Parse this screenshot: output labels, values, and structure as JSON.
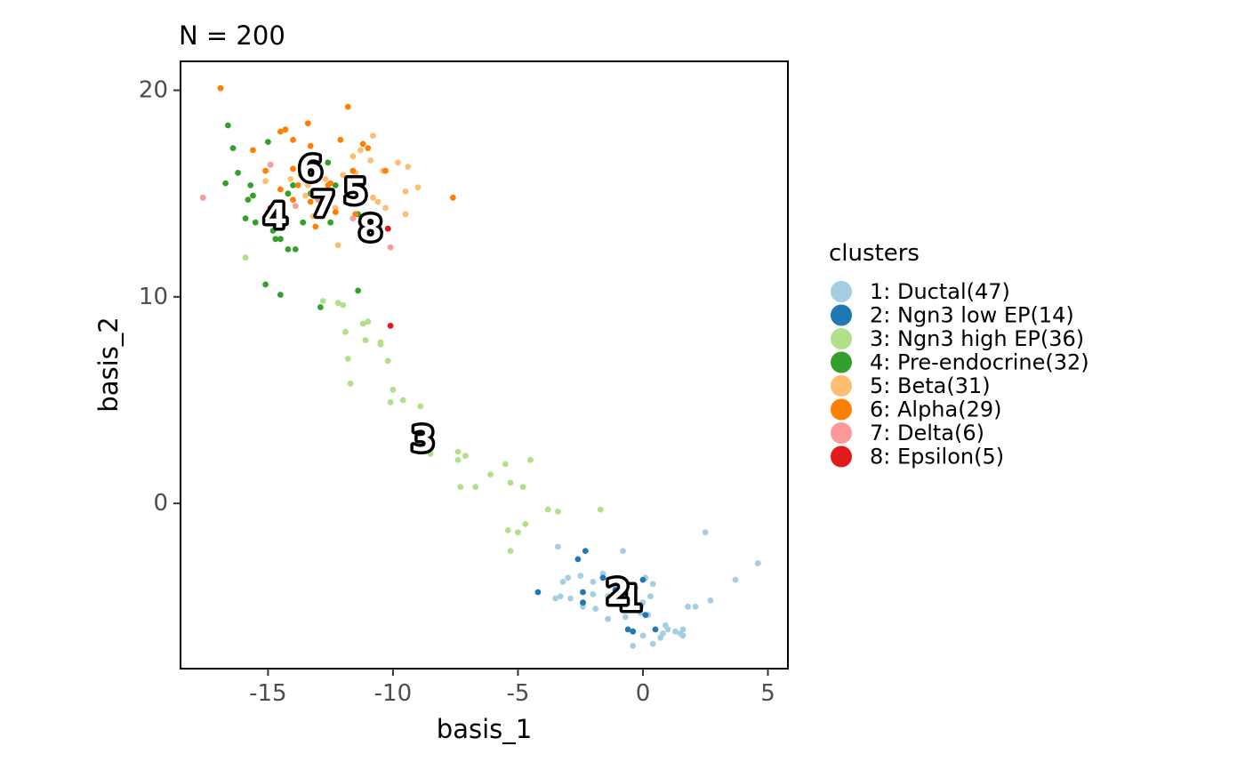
{
  "chart_data": {
    "type": "scatter",
    "title": "N = 200",
    "xlabel": "basis_1",
    "ylabel": "basis_2",
    "xlim": [
      -18.5,
      5.8
    ],
    "ylim": [
      -8.0,
      21.4
    ],
    "xticks": [
      -15,
      -10,
      -5,
      0,
      5
    ],
    "yticks": [
      0,
      10,
      20
    ],
    "xtick_labels": [
      "-15",
      "-10",
      "-5",
      "0",
      "5"
    ],
    "ytick_labels": [
      "0",
      "10",
      "20"
    ],
    "grid": false,
    "legend": {
      "title": "clusters",
      "position": "right",
      "entries": [
        {
          "label": "1: Ductal(47)",
          "color": "#A6CEE3"
        },
        {
          "label": "2: Ngn3 low EP(14)",
          "color": "#1F78B4"
        },
        {
          "label": "3: Ngn3 high EP(36)",
          "color": "#B2DF8A"
        },
        {
          "label": "4: Pre-endocrine(32)",
          "color": "#33A02C"
        },
        {
          "label": "5: Beta(31)",
          "color": "#FDBF6F"
        },
        {
          "label": "6: Alpha(29)",
          "color": "#FF7F00"
        },
        {
          "label": "7: Delta(6)",
          "color": "#FB9A99"
        },
        {
          "label": "8: Epsilon(5)",
          "color": "#E31A1C"
        }
      ]
    },
    "cluster_labels": [
      {
        "text": "1",
        "x": -0.5,
        "y": -4.6
      },
      {
        "text": "2",
        "x": -1.0,
        "y": -4.3
      },
      {
        "text": "3",
        "x": -8.8,
        "y": 3.1
      },
      {
        "text": "4",
        "x": -14.7,
        "y": 13.9
      },
      {
        "text": "5",
        "x": -11.5,
        "y": 15.1
      },
      {
        "text": "6",
        "x": -13.3,
        "y": 16.2
      },
      {
        "text": "7",
        "x": -12.8,
        "y": 14.5
      },
      {
        "text": "8",
        "x": -10.9,
        "y": 13.3
      }
    ],
    "series": [
      {
        "name": "1: Ductal(47)",
        "color": "#A6CEE3",
        "points": [
          [
            -3.4,
            -2.1
          ],
          [
            -2.5,
            -3.5
          ],
          [
            -0.8,
            -2.3
          ],
          [
            -1.6,
            -3.4
          ],
          [
            -3.0,
            -3.6
          ],
          [
            -2.0,
            -3.8
          ],
          [
            -1.2,
            -3.9
          ],
          [
            0.1,
            -3.6
          ],
          [
            0.4,
            -3.9
          ],
          [
            -0.3,
            -4.1
          ],
          [
            0.3,
            -4.5
          ],
          [
            -1.4,
            -4.5
          ],
          [
            -0.9,
            -4.8
          ],
          [
            -2.4,
            -5.0
          ],
          [
            -1.9,
            -5.1
          ],
          [
            -0.5,
            -5.0
          ],
          [
            -0.1,
            -5.3
          ],
          [
            -1.4,
            -5.6
          ],
          [
            -0.7,
            -5.5
          ],
          [
            0.2,
            -5.4
          ],
          [
            0.9,
            -5.9
          ],
          [
            1.0,
            -6.1
          ],
          [
            1.3,
            -6.2
          ],
          [
            1.5,
            -6.3
          ],
          [
            0.5,
            -6.1
          ],
          [
            0.0,
            -6.4
          ],
          [
            0.7,
            -6.5
          ],
          [
            0.4,
            -6.8
          ],
          [
            -0.4,
            -6.9
          ],
          [
            1.6,
            -6.1
          ],
          [
            1.6,
            -6.4
          ],
          [
            1.8,
            -5.0
          ],
          [
            2.1,
            -5.0
          ],
          [
            2.7,
            -4.7
          ],
          [
            3.7,
            -3.7
          ],
          [
            4.6,
            -2.9
          ],
          [
            2.5,
            -1.4
          ],
          [
            -3.5,
            -4.6
          ],
          [
            -3.3,
            -4.5
          ],
          [
            -2.9,
            -4.6
          ],
          [
            -2.4,
            -4.8
          ],
          [
            -2.0,
            -4.4
          ],
          [
            -1.1,
            -4.1
          ],
          [
            -0.6,
            -4.4
          ],
          [
            0.0,
            -4.8
          ],
          [
            0.8,
            -6.3
          ],
          [
            -3.2,
            -3.8
          ]
        ]
      },
      {
        "name": "2: Ngn3 low EP(14)",
        "color": "#1F78B4",
        "points": [
          [
            -4.2,
            -4.3
          ],
          [
            -2.6,
            -2.7
          ],
          [
            -2.3,
            -2.3
          ],
          [
            -2.4,
            -4.3
          ],
          [
            -2.4,
            -4.8
          ],
          [
            -1.6,
            -3.6
          ],
          [
            -1.1,
            -4.2
          ],
          [
            -0.6,
            -4.6
          ],
          [
            -0.1,
            -5.0
          ],
          [
            0.1,
            -5.4
          ],
          [
            0.0,
            -3.7
          ],
          [
            -0.6,
            -6.1
          ],
          [
            -0.4,
            -6.2
          ],
          [
            0.5,
            -6.1
          ]
        ]
      },
      {
        "name": "3: Ngn3 high EP(36)",
        "color": "#B2DF8A",
        "points": [
          [
            -15.9,
            11.9
          ],
          [
            -12.8,
            9.8
          ],
          [
            -12.2,
            9.7
          ],
          [
            -12.0,
            9.6
          ],
          [
            -11.2,
            8.7
          ],
          [
            -11.0,
            8.8
          ],
          [
            -11.9,
            8.3
          ],
          [
            -11.1,
            7.9
          ],
          [
            -10.5,
            7.8
          ],
          [
            -10.5,
            7.7
          ],
          [
            -11.8,
            7.0
          ],
          [
            -10.2,
            6.9
          ],
          [
            -11.7,
            5.8
          ],
          [
            -10.0,
            5.5
          ],
          [
            -9.6,
            5.0
          ],
          [
            -10.1,
            4.9
          ],
          [
            -8.9,
            4.7
          ],
          [
            -8.7,
            2.9
          ],
          [
            -8.5,
            2.4
          ],
          [
            -7.4,
            2.5
          ],
          [
            -7.1,
            2.3
          ],
          [
            -7.4,
            2.1
          ],
          [
            -5.5,
            1.9
          ],
          [
            -4.5,
            2.1
          ],
          [
            -6.1,
            1.4
          ],
          [
            -5.3,
            1.0
          ],
          [
            -4.8,
            0.8
          ],
          [
            -6.7,
            0.8
          ],
          [
            -7.3,
            0.8
          ],
          [
            -3.8,
            -0.3
          ],
          [
            -3.4,
            -0.4
          ],
          [
            -1.7,
            -0.3
          ],
          [
            -4.7,
            -1.0
          ],
          [
            -5.4,
            -1.3
          ],
          [
            -5.0,
            -1.4
          ],
          [
            -5.3,
            -2.3
          ]
        ]
      },
      {
        "name": "4: Pre-endocrine(32)",
        "color": "#33A02C",
        "points": [
          [
            -16.6,
            18.3
          ],
          [
            -16.4,
            17.2
          ],
          [
            -16.2,
            16.0
          ],
          [
            -16.7,
            15.5
          ],
          [
            -15.7,
            15.4
          ],
          [
            -15.6,
            14.9
          ],
          [
            -15.8,
            14.7
          ],
          [
            -15.9,
            13.8
          ],
          [
            -15.5,
            13.6
          ],
          [
            -15.0,
            14.0
          ],
          [
            -14.5,
            13.7
          ],
          [
            -14.8,
            13.2
          ],
          [
            -14.5,
            12.8
          ],
          [
            -14.7,
            12.8
          ],
          [
            -14.2,
            12.3
          ],
          [
            -13.9,
            12.3
          ],
          [
            -14.2,
            15.0
          ],
          [
            -14.0,
            15.4
          ],
          [
            -13.3,
            15.0
          ],
          [
            -13.0,
            15.0
          ],
          [
            -12.3,
            15.4
          ],
          [
            -11.7,
            15.6
          ],
          [
            -12.5,
            13.6
          ],
          [
            -13.6,
            13.6
          ],
          [
            -11.4,
            14.0
          ],
          [
            -11.4,
            10.3
          ],
          [
            -12.9,
            9.5
          ],
          [
            -15.1,
            10.6
          ],
          [
            -14.5,
            10.1
          ],
          [
            -15.0,
            17.5
          ],
          [
            -12.6,
            16.5
          ],
          [
            -11.5,
            15.3
          ]
        ]
      },
      {
        "name": "5: Beta(31)",
        "color": "#FDBF6F",
        "points": [
          [
            -10.8,
            17.8
          ],
          [
            -11.3,
            17.1
          ],
          [
            -10.9,
            16.6
          ],
          [
            -11.6,
            16.8
          ],
          [
            -11.5,
            16.0
          ],
          [
            -10.4,
            16.1
          ],
          [
            -9.8,
            16.5
          ],
          [
            -9.4,
            16.3
          ],
          [
            -9.0,
            15.3
          ],
          [
            -9.5,
            15.1
          ],
          [
            -10.8,
            14.8
          ],
          [
            -10.6,
            14.6
          ],
          [
            -10.3,
            14.3
          ],
          [
            -9.5,
            14.0
          ],
          [
            -11.7,
            14.5
          ],
          [
            -12.3,
            14.3
          ],
          [
            -11.3,
            13.6
          ],
          [
            -11.0,
            13.3
          ],
          [
            -10.8,
            13.4
          ],
          [
            -12.2,
            12.5
          ],
          [
            -14.1,
            15.7
          ],
          [
            -13.4,
            15.4
          ],
          [
            -13.2,
            15.0
          ],
          [
            -13.5,
            14.9
          ],
          [
            -12.7,
            15.7
          ],
          [
            -12.0,
            15.9
          ],
          [
            -13.5,
            16.2
          ],
          [
            -13.7,
            15.9
          ],
          [
            -15.1,
            15.6
          ],
          [
            -13.2,
            13.9
          ],
          [
            -11.2,
            13.2
          ]
        ]
      },
      {
        "name": "6: Alpha(29)",
        "color": "#FF7F00",
        "points": [
          [
            -16.9,
            20.1
          ],
          [
            -14.3,
            18.1
          ],
          [
            -14.5,
            18.0
          ],
          [
            -13.4,
            18.4
          ],
          [
            -11.8,
            19.2
          ],
          [
            -14.0,
            17.6
          ],
          [
            -13.3,
            17.3
          ],
          [
            -12.1,
            17.6
          ],
          [
            -11.2,
            17.4
          ],
          [
            -11.0,
            17.2
          ],
          [
            -15.6,
            17.1
          ],
          [
            -15.1,
            16.1
          ],
          [
            -14.0,
            16.2
          ],
          [
            -13.8,
            15.4
          ],
          [
            -11.6,
            16.1
          ],
          [
            -10.3,
            16.1
          ],
          [
            -13.3,
            16.3
          ],
          [
            -12.5,
            15.5
          ],
          [
            -13.3,
            14.6
          ],
          [
            -14.5,
            15.2
          ],
          [
            -14.0,
            14.7
          ],
          [
            -12.3,
            14.1
          ],
          [
            -11.5,
            14.0
          ],
          [
            -10.9,
            14.0
          ],
          [
            -13.1,
            13.4
          ],
          [
            -7.6,
            14.8
          ],
          [
            -12.6,
            15.4
          ],
          [
            -13.6,
            16.3
          ],
          [
            -11.6,
            16.1
          ]
        ]
      },
      {
        "name": "7: Delta(6)",
        "color": "#FB9A99",
        "points": [
          [
            -17.6,
            14.8
          ],
          [
            -14.9,
            16.4
          ],
          [
            -13.9,
            14.4
          ],
          [
            -11.6,
            13.8
          ],
          [
            -10.1,
            12.4
          ],
          [
            -13.0,
            14.7
          ]
        ]
      },
      {
        "name": "8: Epsilon(5)",
        "color": "#E31A1C",
        "points": [
          [
            -14.9,
            14.3
          ],
          [
            -13.6,
            16.1
          ],
          [
            -10.2,
            13.3
          ],
          [
            -10.1,
            8.6
          ],
          [
            -14.6,
            14.0
          ]
        ]
      }
    ]
  }
}
